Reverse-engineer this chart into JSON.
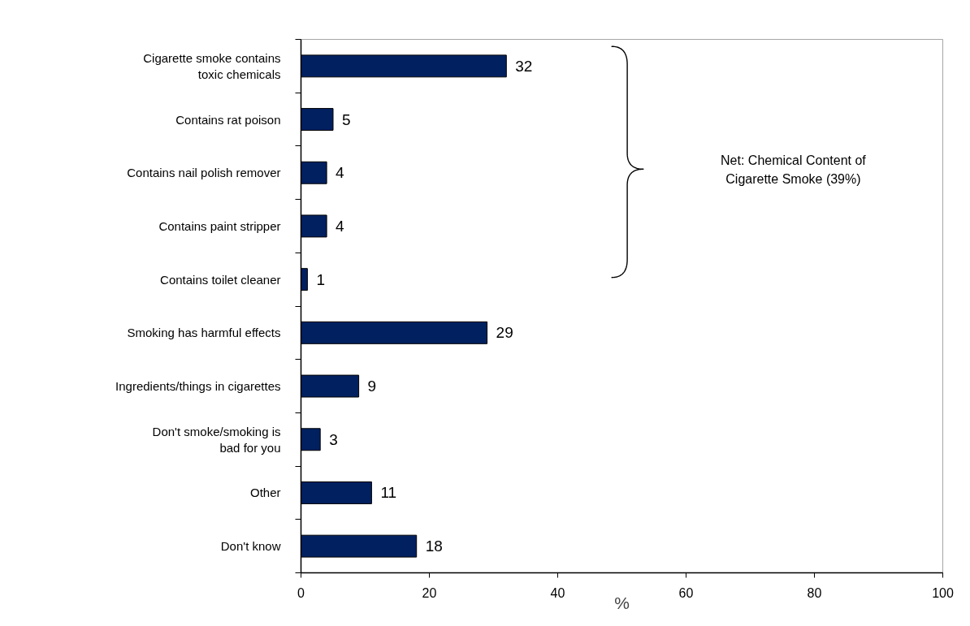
{
  "chart_data": {
    "type": "bar",
    "orientation": "horizontal",
    "categories": [
      "Cigarette smoke contains\ntoxic chemicals",
      "Contains rat poison",
      "Contains nail polish remover",
      "Contains paint stripper",
      "Contains toilet cleaner",
      "Smoking has harmful effects",
      "Ingredients/things in cigarettes",
      "Don't smoke/smoking is\nbad for you",
      "Other",
      "Don't know"
    ],
    "values": [
      32,
      5,
      4,
      4,
      1,
      29,
      9,
      3,
      11,
      18
    ],
    "color": "#002060",
    "xlabel": "%",
    "xlim": [
      0,
      100
    ],
    "xticks": [
      0,
      20,
      40,
      60,
      80,
      100
    ],
    "data_labels": true,
    "annotations": [
      "Net: Chemical Content of\nCigarette Smoke (39%)"
    ]
  }
}
